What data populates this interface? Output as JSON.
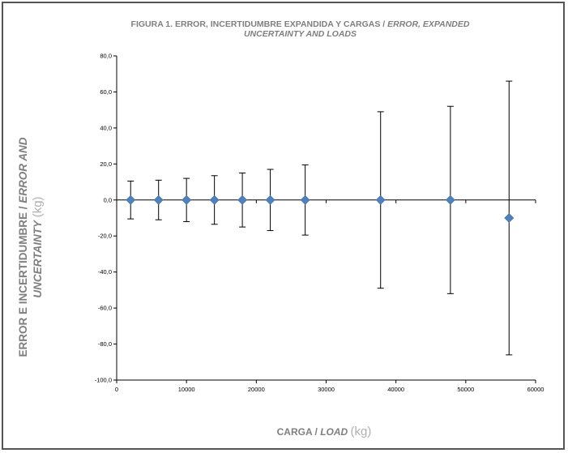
{
  "chart_data": {
    "type": "scatter",
    "title_es": "FIGURA 1.  ERROR, INCERTIDUMBRE EXPANDIDA Y CARGAS /",
    "title_en_1": "ERROR, EXPANDED",
    "title_en_2": "UNCERTAINTY AND LOADS",
    "ylabel_es": "ERROR E INCERTIDUMBRE /",
    "ylabel_en_1": "ERROR AND",
    "ylabel_en_2": "UNCERTAINTY",
    "ylabel_unit": "(kg)",
    "xlabel_es": "CARGA /",
    "xlabel_en": "LOAD",
    "xlabel_unit": "(kg)",
    "xlim": [
      0,
      60000
    ],
    "ylim": [
      -100,
      80
    ],
    "x_ticks": [
      0,
      10000,
      20000,
      30000,
      40000,
      50000,
      60000
    ],
    "x_tick_labels": [
      "0",
      "10000",
      "20000",
      "30000",
      "40000",
      "50000",
      "60000"
    ],
    "y_ticks": [
      80,
      60,
      40,
      20,
      0,
      -20,
      -40,
      -60,
      -80,
      -100
    ],
    "y_tick_labels": [
      "80,0",
      "60,0",
      "40,0",
      "20,0",
      "0,0",
      "-20,0",
      "-40,0",
      "-60,0",
      "-80,0",
      "-100,0"
    ],
    "marker_color": "#4f81bd",
    "series": [
      {
        "x": [
          2000,
          6000,
          10000,
          14000,
          18000,
          22000,
          27000,
          37800,
          47800,
          56200
        ],
        "y": [
          0,
          0,
          0,
          0,
          0,
          0,
          0,
          0,
          0,
          -10
        ],
        "error": [
          10.5,
          11,
          12,
          13.5,
          15,
          17,
          19.5,
          49,
          52,
          76
        ]
      }
    ]
  }
}
